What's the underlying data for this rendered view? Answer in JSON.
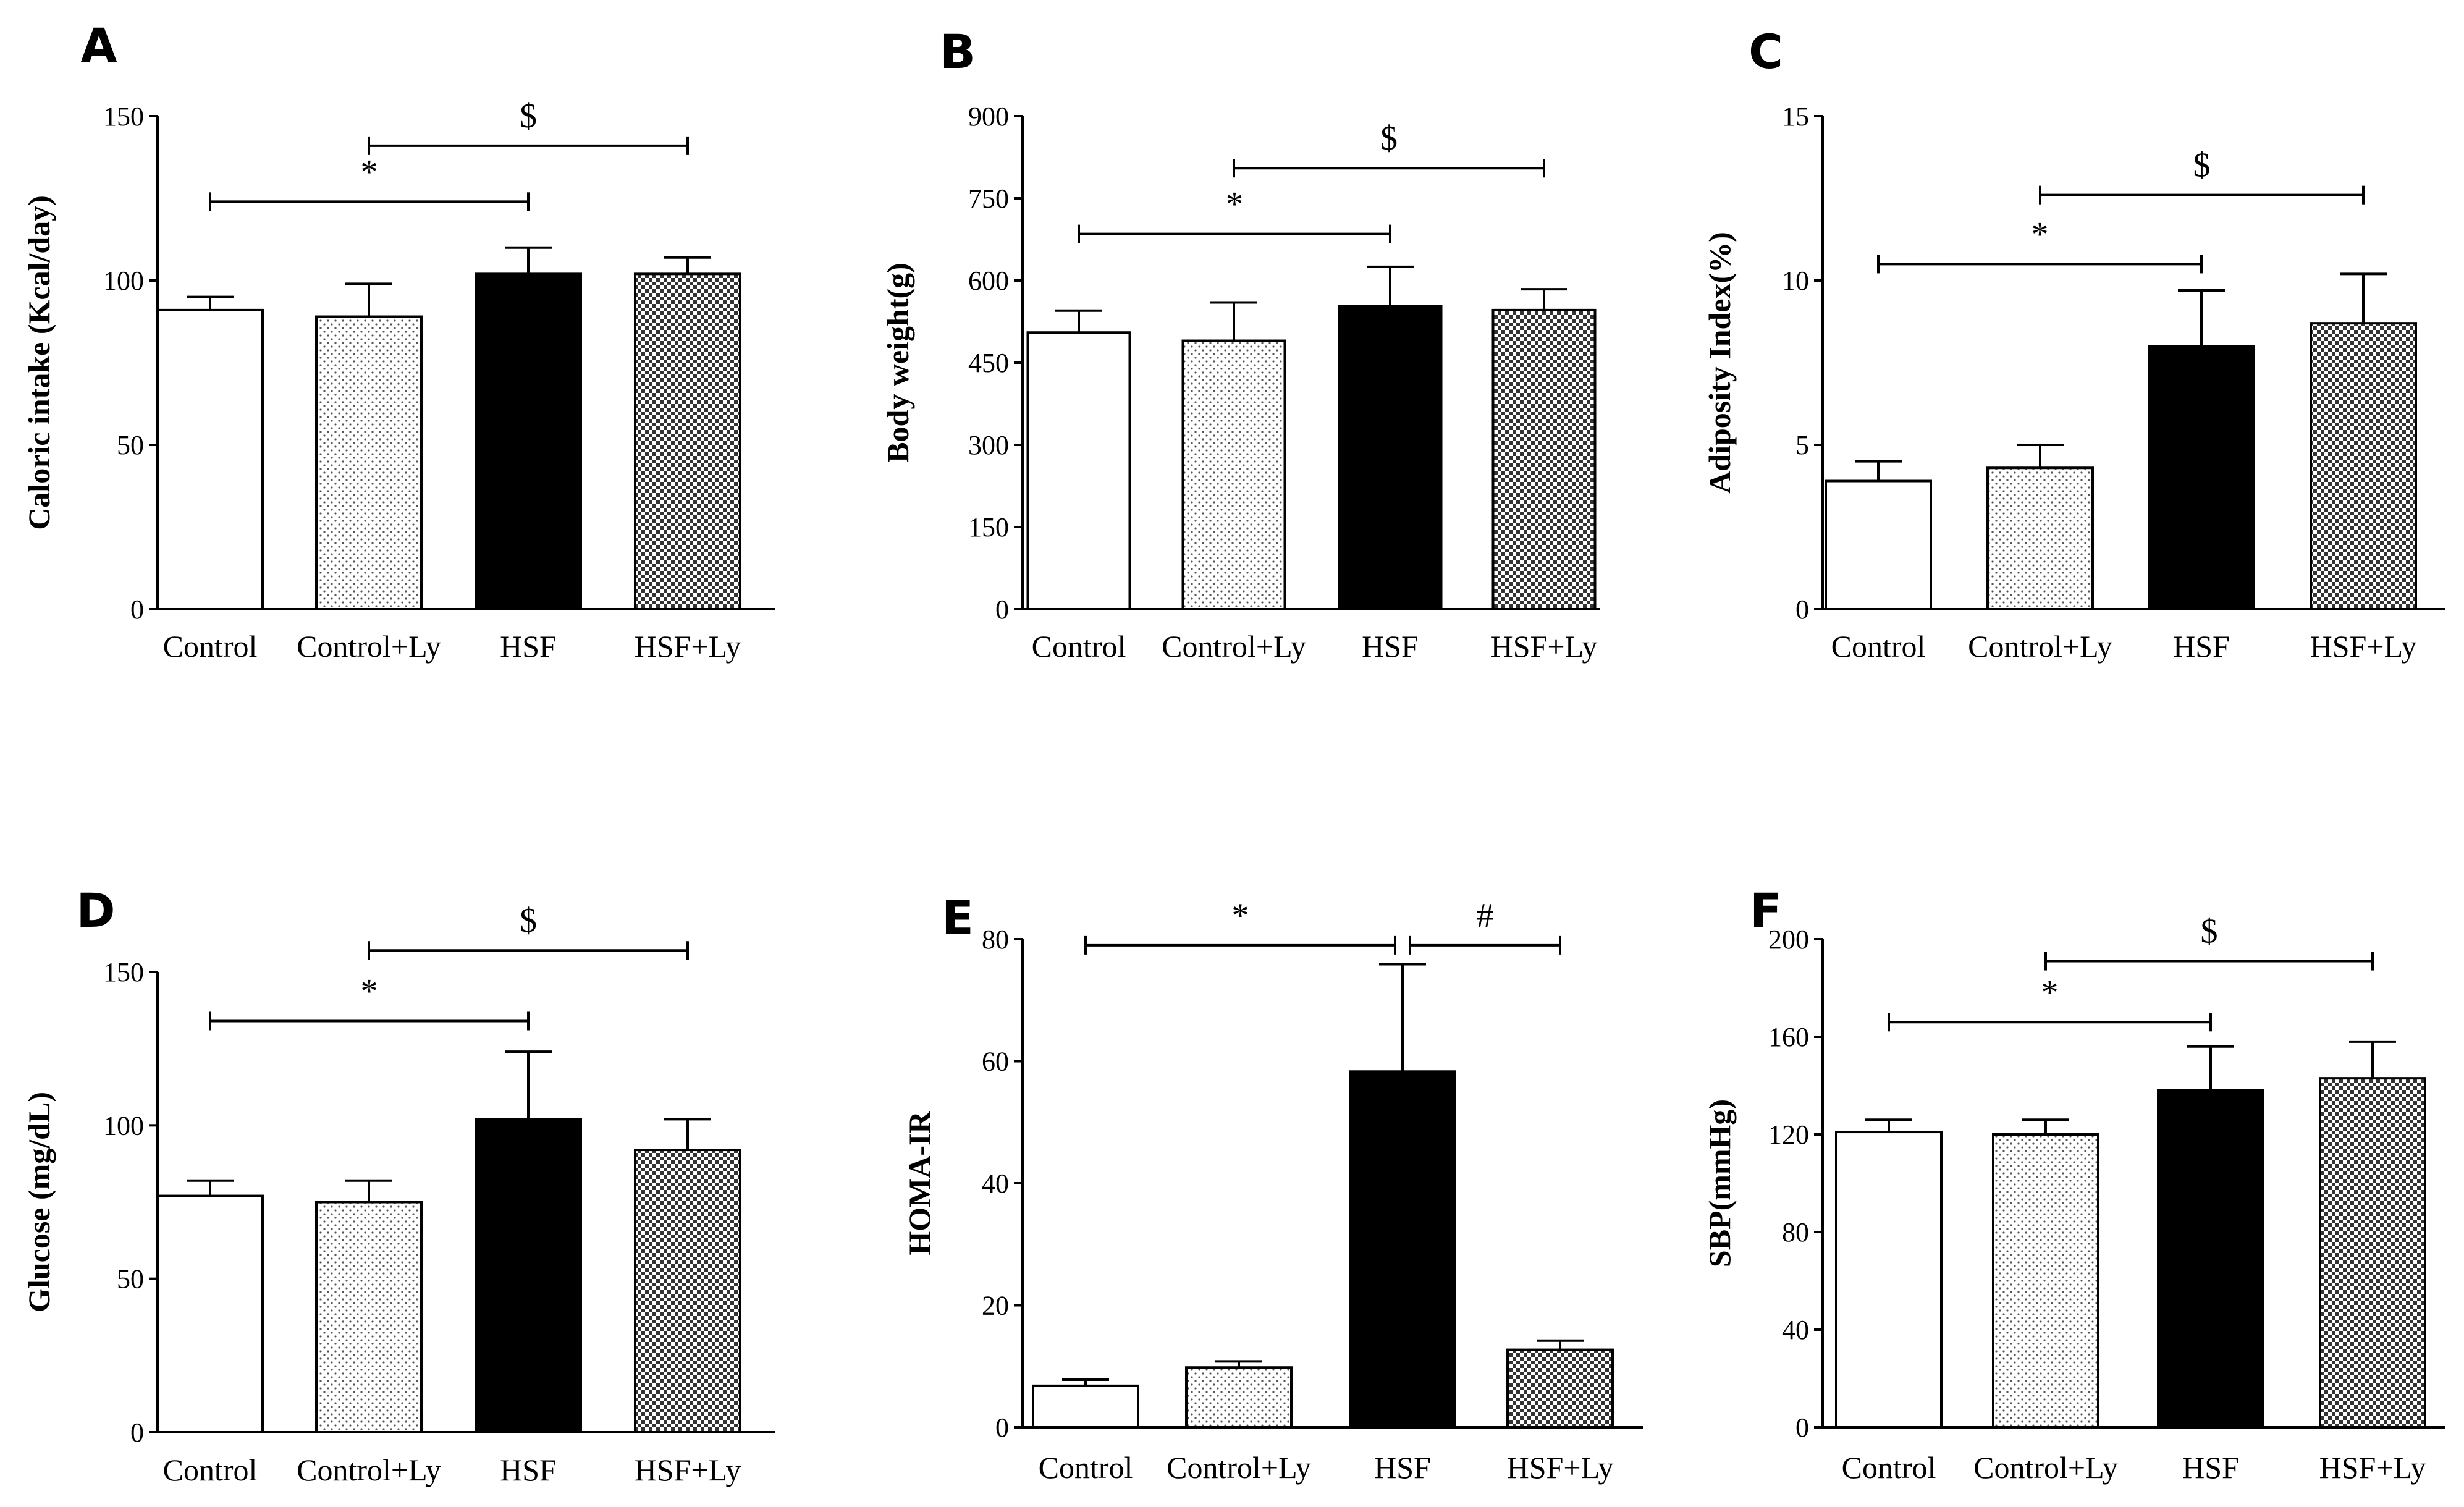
{
  "chart_data": [
    {
      "type": "bar",
      "panel": "A",
      "ylabel": "Caloric intake (Kcal/day)",
      "ylim": [
        0,
        150
      ],
      "yticks": [
        "0",
        "50",
        "100",
        "150"
      ],
      "categories": [
        "Control",
        "Control+Ly",
        "HSF",
        "HSF+Ly"
      ],
      "values": [
        91,
        89,
        102,
        102
      ],
      "errors": [
        4,
        10,
        8,
        5
      ],
      "brackets": [
        {
          "label": "*",
          "from": 0,
          "to": 2,
          "y": 124
        },
        {
          "label": "$",
          "from": 1,
          "to": 3,
          "y": 141
        }
      ]
    },
    {
      "type": "bar",
      "panel": "B",
      "ylabel": "Body weight(g)",
      "ylim": [
        0,
        900
      ],
      "yticks": [
        "0",
        "150",
        "300",
        "450",
        "600",
        "750",
        "900"
      ],
      "categories": [
        "Control",
        "Control+Ly",
        "HSF",
        "HSF+Ly"
      ],
      "values": [
        505,
        490,
        553,
        546
      ],
      "errors": [
        40,
        70,
        72,
        38
      ],
      "brackets": [
        {
          "label": "*",
          "from": 0,
          "to": 2,
          "y": 685
        },
        {
          "label": "$",
          "from": 1,
          "to": 3,
          "y": 805
        }
      ]
    },
    {
      "type": "bar",
      "panel": "C",
      "ylabel": "Adiposity Index(%)",
      "ylim": [
        0,
        15
      ],
      "yticks": [
        "0",
        "5",
        "10",
        "15"
      ],
      "categories": [
        "Control",
        "Control+Ly",
        "HSF",
        "HSF+Ly"
      ],
      "values": [
        3.9,
        4.3,
        8.0,
        8.7
      ],
      "errors": [
        0.6,
        0.7,
        1.7,
        1.5
      ],
      "brackets": [
        {
          "label": "*",
          "from": 0,
          "to": 2,
          "y": 10.5
        },
        {
          "label": "$",
          "from": 1,
          "to": 3,
          "y": 12.6
        }
      ]
    },
    {
      "type": "bar",
      "panel": "D",
      "ylabel": "Glucose (mg/dL)",
      "ylim": [
        0,
        150
      ],
      "yticks": [
        "0",
        "50",
        "100",
        "150"
      ],
      "categories": [
        "Control",
        "Control+Ly",
        "HSF",
        "HSF+Ly"
      ],
      "values": [
        77,
        75,
        102,
        92
      ],
      "errors": [
        5,
        7,
        22,
        10
      ],
      "brackets": [
        {
          "label": "*",
          "from": 0,
          "to": 2,
          "y": 134
        },
        {
          "label": "$",
          "from": 1,
          "to": 3,
          "y": 157
        }
      ]
    },
    {
      "type": "bar",
      "panel": "E",
      "ylabel": "HOMA-IR",
      "ylim": [
        0,
        80
      ],
      "yticks": [
        "0",
        "20",
        "40",
        "60",
        "80"
      ],
      "categories": [
        "Control",
        "Control+Ly",
        "HSF",
        "HSF+Ly"
      ],
      "values": [
        6.8,
        9.8,
        58.3,
        12.7
      ],
      "errors": [
        1.0,
        1.0,
        17.6,
        1.5
      ],
      "brackets": [
        {
          "label": "*",
          "from": 0,
          "to": 2,
          "y": 79
        },
        {
          "label": "#",
          "from": 2,
          "to": 3,
          "y": 79
        }
      ]
    },
    {
      "type": "bar",
      "panel": "F",
      "ylabel": "SBP(mmHg)",
      "ylim": [
        0,
        200
      ],
      "yticks": [
        "0",
        "40",
        "80",
        "120",
        "160",
        "200"
      ],
      "categories": [
        "Control",
        "Control+Ly",
        "HSF",
        "HSF+Ly"
      ],
      "values": [
        121,
        120,
        138,
        143
      ],
      "errors": [
        5,
        6,
        18,
        15
      ],
      "brackets": [
        {
          "label": "*",
          "from": 0,
          "to": 2,
          "y": 166
        },
        {
          "label": "$",
          "from": 1,
          "to": 3,
          "y": 191
        }
      ]
    }
  ]
}
